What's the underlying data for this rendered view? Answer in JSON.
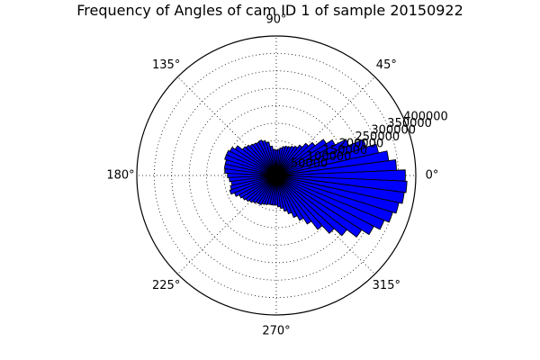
{
  "chart_data": {
    "type": "bar",
    "projection": "polar",
    "title": "Frequency of Angles of cam ID 1 of sample 20150922",
    "angle_ticks": [
      "0°",
      "45°",
      "90°",
      "135°",
      "180°",
      "225°",
      "270°",
      "315°"
    ],
    "radial_ticks": [
      "50000",
      "100000",
      "150000",
      "200000",
      "250000",
      "300000",
      "350000",
      "400000"
    ],
    "rlim": [
      0,
      400000
    ],
    "grid": true,
    "bar_color": "#0000ff",
    "bin_width_deg": 5,
    "bins": [
      {
        "angle": 0,
        "value": 370000
      },
      {
        "angle": 5,
        "value": 345000
      },
      {
        "angle": 10,
        "value": 325000
      },
      {
        "angle": 15,
        "value": 300000
      },
      {
        "angle": 20,
        "value": 270000
      },
      {
        "angle": 25,
        "value": 225000
      },
      {
        "angle": 30,
        "value": 190000
      },
      {
        "angle": 35,
        "value": 170000
      },
      {
        "angle": 40,
        "value": 140000
      },
      {
        "angle": 45,
        "value": 125000
      },
      {
        "angle": 50,
        "value": 110000
      },
      {
        "angle": 55,
        "value": 100000
      },
      {
        "angle": 60,
        "value": 95000
      },
      {
        "angle": 65,
        "value": 90000
      },
      {
        "angle": 70,
        "value": 88000
      },
      {
        "angle": 75,
        "value": 85000
      },
      {
        "angle": 80,
        "value": 80000
      },
      {
        "angle": 85,
        "value": 75000
      },
      {
        "angle": 90,
        "value": 72000
      },
      {
        "angle": 95,
        "value": 75000
      },
      {
        "angle": 100,
        "value": 85000
      },
      {
        "angle": 105,
        "value": 98000
      },
      {
        "angle": 110,
        "value": 105000
      },
      {
        "angle": 115,
        "value": 110000
      },
      {
        "angle": 120,
        "value": 108000
      },
      {
        "angle": 125,
        "value": 110000
      },
      {
        "angle": 130,
        "value": 113000
      },
      {
        "angle": 135,
        "value": 118000
      },
      {
        "angle": 140,
        "value": 122000
      },
      {
        "angle": 145,
        "value": 140000
      },
      {
        "angle": 150,
        "value": 150000
      },
      {
        "angle": 155,
        "value": 155000
      },
      {
        "angle": 160,
        "value": 155000
      },
      {
        "angle": 165,
        "value": 150000
      },
      {
        "angle": 170,
        "value": 150000
      },
      {
        "angle": 175,
        "value": 148000
      },
      {
        "angle": 180,
        "value": 140000
      },
      {
        "angle": 185,
        "value": 135000
      },
      {
        "angle": 190,
        "value": 130000
      },
      {
        "angle": 195,
        "value": 135000
      },
      {
        "angle": 200,
        "value": 140000
      },
      {
        "angle": 205,
        "value": 130000
      },
      {
        "angle": 210,
        "value": 120000
      },
      {
        "angle": 215,
        "value": 115000
      },
      {
        "angle": 220,
        "value": 110000
      },
      {
        "angle": 225,
        "value": 105000
      },
      {
        "angle": 230,
        "value": 100000
      },
      {
        "angle": 235,
        "value": 95000
      },
      {
        "angle": 240,
        "value": 95000
      },
      {
        "angle": 245,
        "value": 90000
      },
      {
        "angle": 250,
        "value": 88000
      },
      {
        "angle": 255,
        "value": 85000
      },
      {
        "angle": 260,
        "value": 85000
      },
      {
        "angle": 265,
        "value": 85000
      },
      {
        "angle": 270,
        "value": 85000
      },
      {
        "angle": 275,
        "value": 90000
      },
      {
        "angle": 280,
        "value": 95000
      },
      {
        "angle": 285,
        "value": 105000
      },
      {
        "angle": 290,
        "value": 115000
      },
      {
        "angle": 295,
        "value": 130000
      },
      {
        "angle": 300,
        "value": 145000
      },
      {
        "angle": 305,
        "value": 165000
      },
      {
        "angle": 310,
        "value": 195000
      },
      {
        "angle": 315,
        "value": 225000
      },
      {
        "angle": 320,
        "value": 255000
      },
      {
        "angle": 325,
        "value": 290000
      },
      {
        "angle": 330,
        "value": 315000
      },
      {
        "angle": 335,
        "value": 335000
      },
      {
        "angle": 340,
        "value": 350000
      },
      {
        "angle": 345,
        "value": 360000
      },
      {
        "angle": 350,
        "value": 370000
      },
      {
        "angle": 355,
        "value": 375000
      }
    ]
  }
}
